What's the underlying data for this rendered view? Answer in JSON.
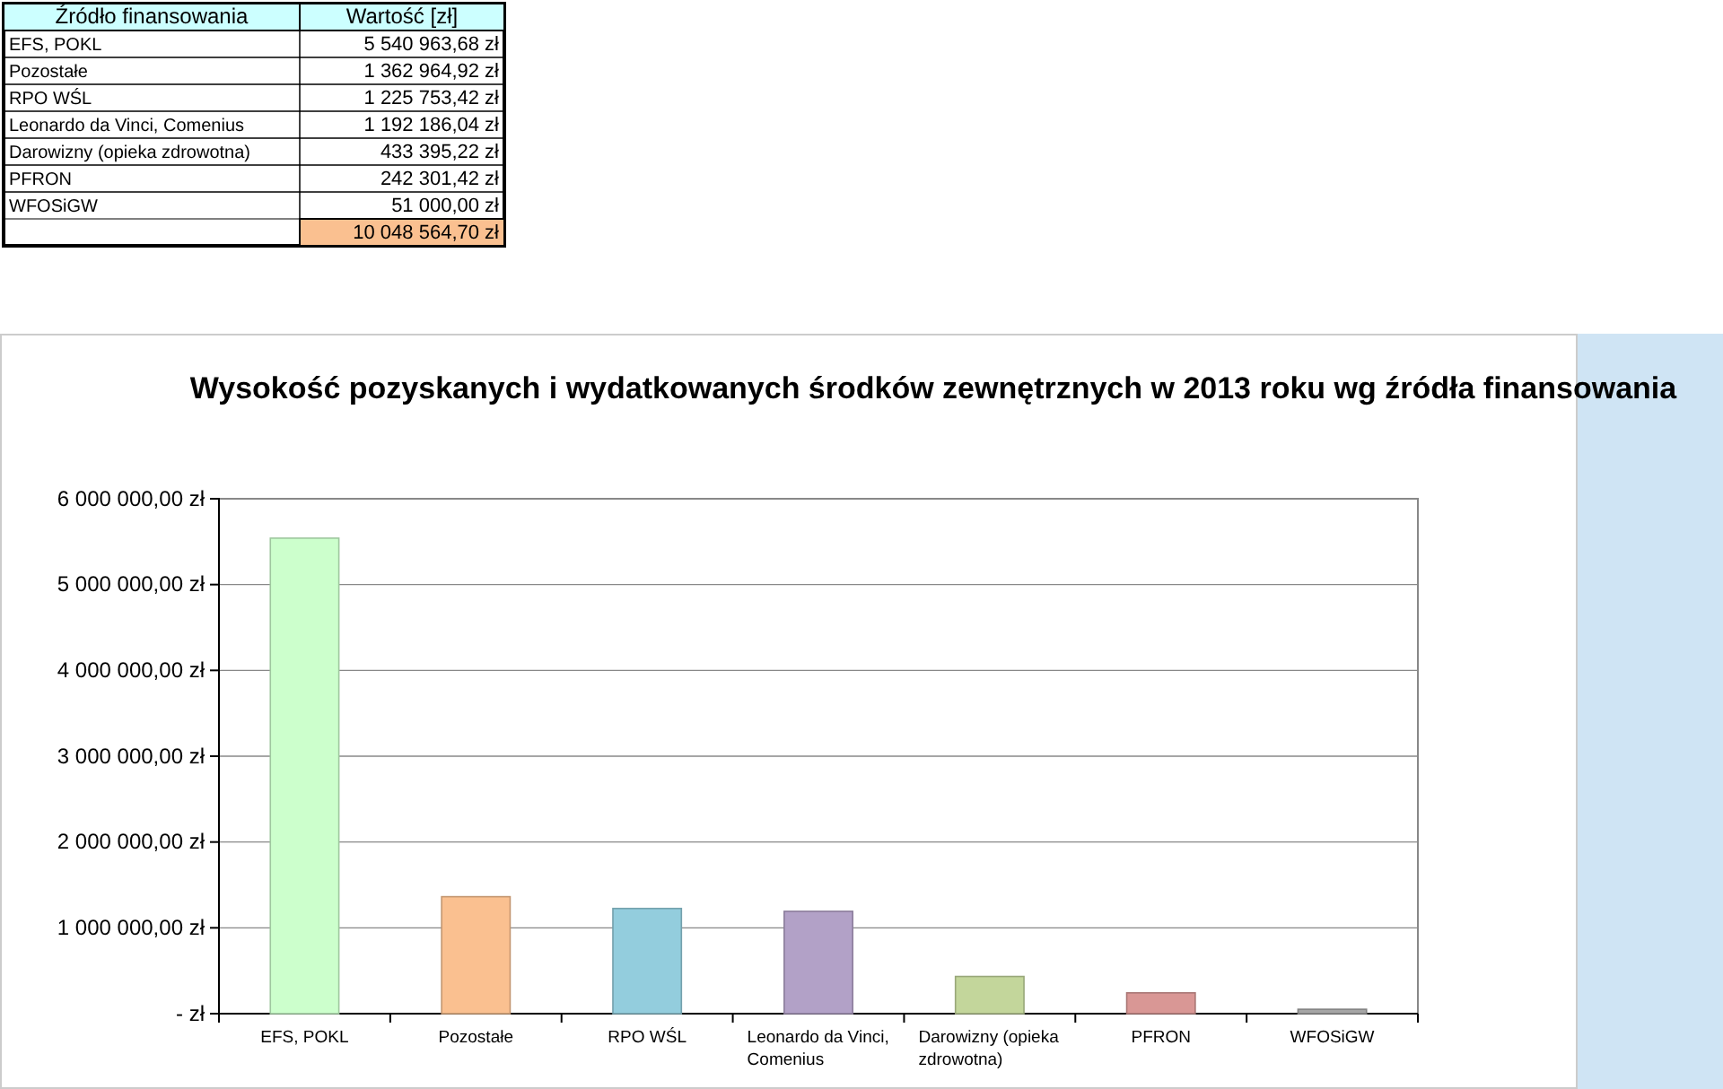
{
  "chart_data": {
    "type": "bar",
    "title": "Wysokość pozyskanych i wydatkowanych środków zewnętrznych w 2013 roku wg źródła finansowania",
    "categories": [
      "EFS, POKL",
      "Pozostałe",
      "RPO WŚL",
      "Leonardo da Vinci, Comenius",
      "Darowizny (opieka zdrowotna)",
      "PFRON",
      "WFOSiGW"
    ],
    "values": [
      5540963.68,
      1362964.92,
      1225753.42,
      1192186.04,
      433395.22,
      242301.42,
      51000
    ],
    "colors": [
      "#ccffcc",
      "#fac090",
      "#93cddd",
      "#b2a1c7",
      "#c3d69b",
      "#d99795",
      "#a6a6a6"
    ],
    "annotations": [
      "Źródło finansowania",
      "Wartość [zł]",
      "5 540 963,68 zł",
      "1 362 964,92 zł",
      "1 225 753,42 zł",
      "1 192 186,04 zł",
      "433 395,22 zł",
      "242 301,42 zł",
      "51 000,00 zł",
      "10 048 564,70 zł"
    ],
    "ylim": [
      0,
      6000000
    ],
    "yticks": [
      {
        "value": 0,
        "label": "- zł"
      },
      {
        "value": 1000000,
        "label": "1 000 000,00 zł"
      },
      {
        "value": 2000000,
        "label": "2 000 000,00 zł"
      },
      {
        "value": 3000000,
        "label": "3 000 000,00 zł"
      },
      {
        "value": 4000000,
        "label": "4 000 000,00 zł"
      },
      {
        "value": 5000000,
        "label": "5 000 000,00 zł"
      },
      {
        "value": 6000000,
        "label": "6 000 000,00 zł"
      }
    ],
    "grid": "y"
  }
}
